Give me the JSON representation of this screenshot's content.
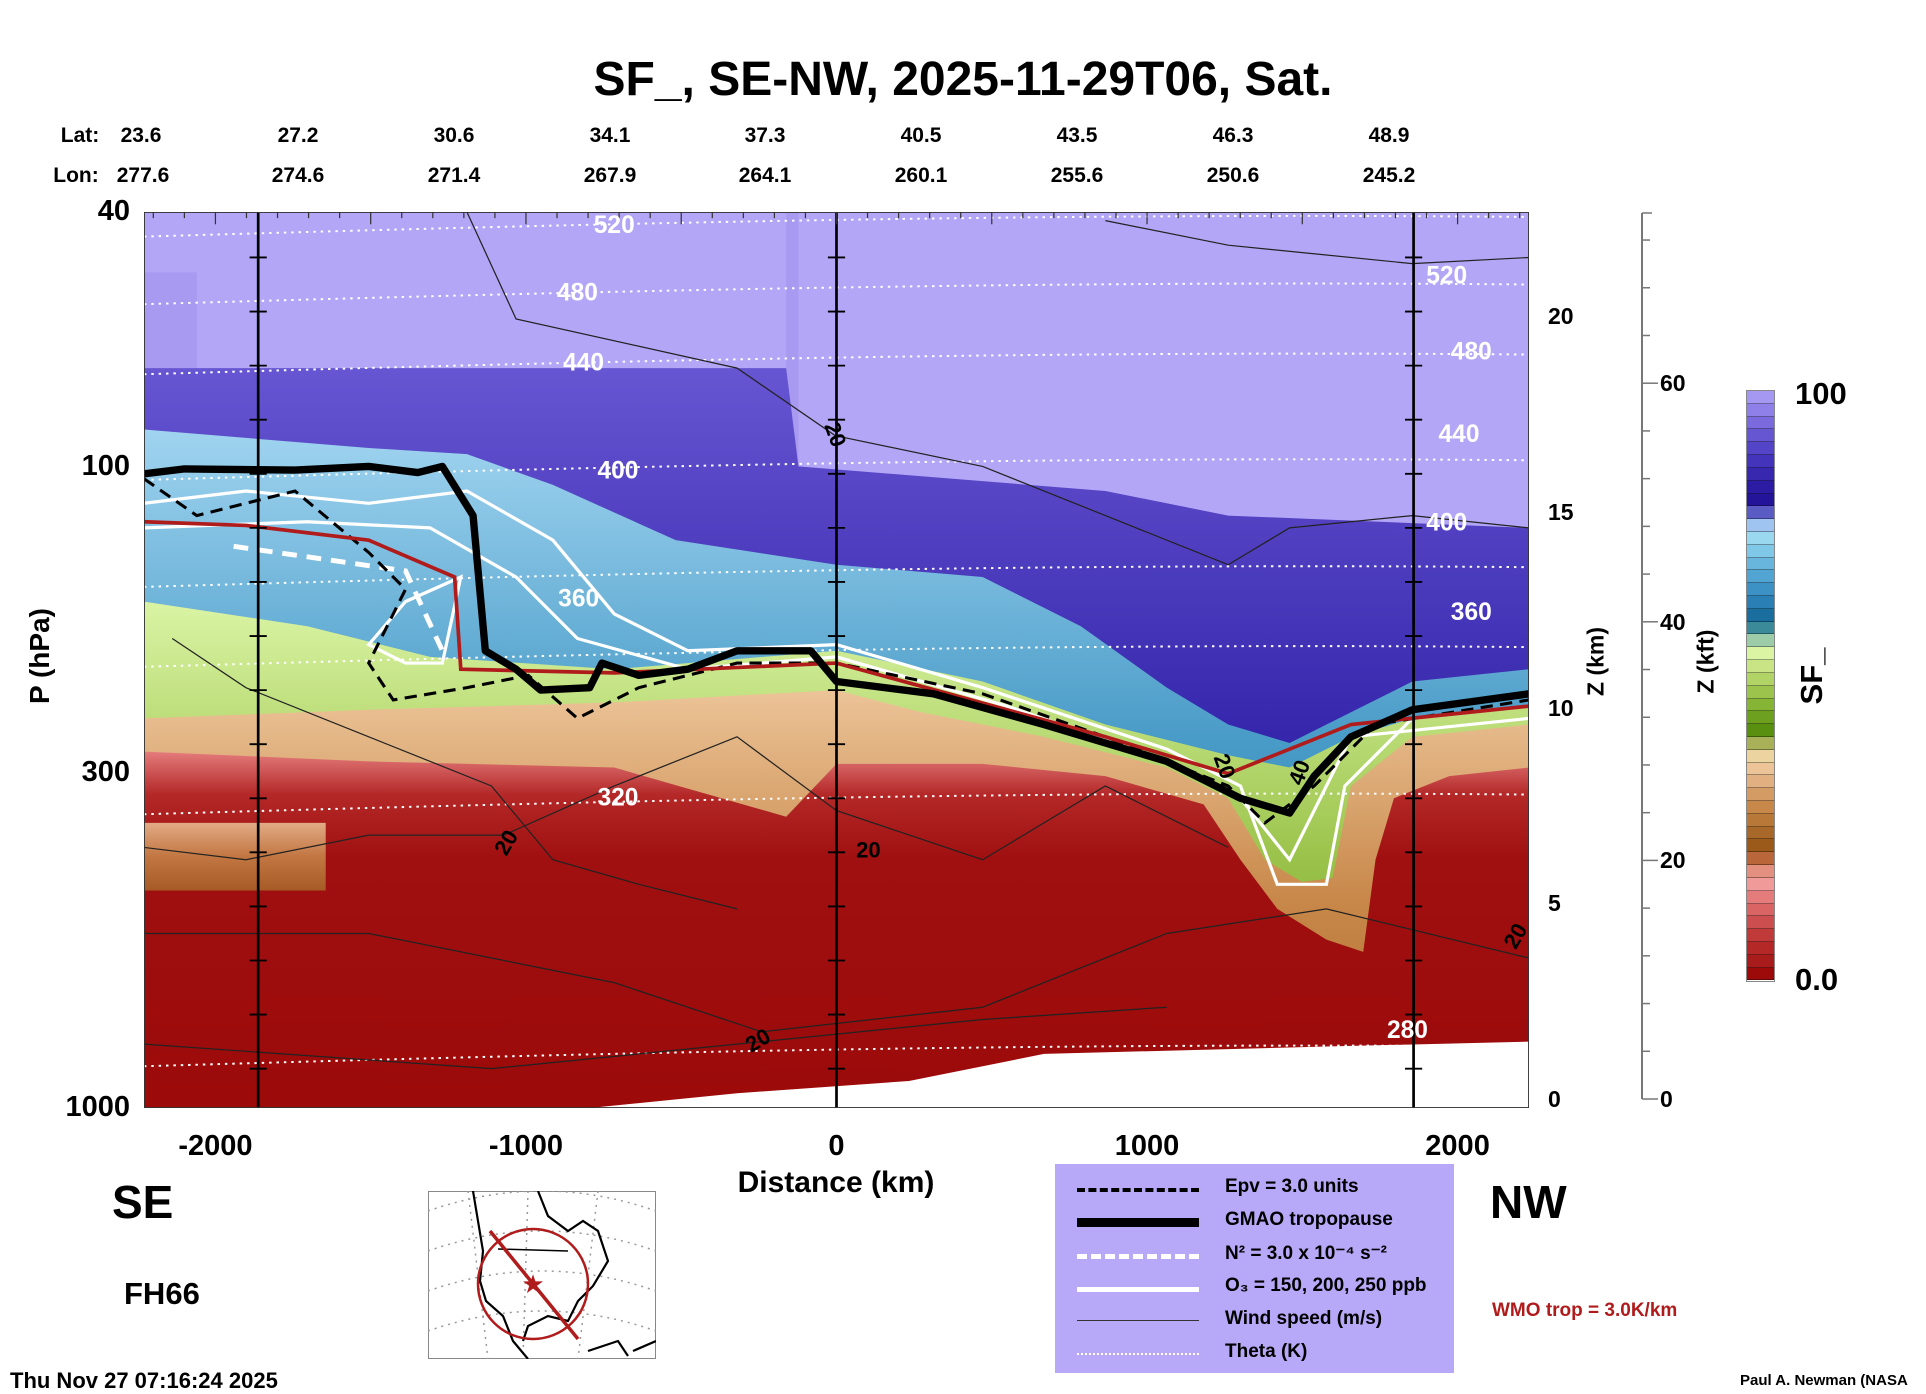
{
  "chart_data": {
    "type": "heatmap",
    "title": "SF_, SE-NW, 2025-11-29T06, Sat.",
    "xlabel": "Distance (km)",
    "ylabel": "P (hPa)",
    "y2label": "Z (km)",
    "y3label": "Z (kft)",
    "xlim": [
      -2230,
      2230
    ],
    "ylim": [
      1000,
      40
    ],
    "yscale": "log",
    "x_ticks": [
      -2000,
      -1000,
      0,
      1000,
      2000
    ],
    "x_tick_labels": [
      "-2000",
      "-1000",
      "0",
      "1000",
      "2000"
    ],
    "y_ticks": [
      40,
      100,
      300,
      1000
    ],
    "y_tick_labels": [
      "40",
      "100",
      "300",
      "1000"
    ],
    "zkm_ticks": [
      0,
      5,
      10,
      15,
      20
    ],
    "zkm_tick_labels": [
      "0",
      "5",
      "10",
      "15",
      "20"
    ],
    "zkft_ticks": [
      0,
      20,
      40,
      60
    ],
    "zkft_tick_labels": [
      "0",
      "20",
      "40",
      "60"
    ],
    "lat_label": "Lat:",
    "lon_label": "Lon:",
    "lat": [
      "23.6",
      "27.2",
      "30.6",
      "34.1",
      "37.3",
      "40.5",
      "43.5",
      "46.3",
      "48.9"
    ],
    "lon": [
      "277.6",
      "274.6",
      "271.4",
      "267.9",
      "264.1",
      "260.1",
      "255.6",
      "250.6",
      "245.2"
    ],
    "colorbar": {
      "label": "SF_",
      "min_label": "0.0",
      "max_label": "100",
      "range": [
        0,
        100
      ],
      "colors": [
        "#9c0a0a",
        "#a81c1c",
        "#b42828",
        "#c03a3a",
        "#cc4e4e",
        "#d86464",
        "#e47c7c",
        "#f09a9a",
        "#e49080",
        "#b8663a",
        "#9c5a1a",
        "#a8682a",
        "#b87838",
        "#c8884a",
        "#d49c64",
        "#e0b080",
        "#ecc498",
        "#ecd4a0",
        "#a8b058",
        "#5a9010",
        "#6ea020",
        "#86b434",
        "#9cc44c",
        "#b2d466",
        "#c8e484",
        "#daf4a4",
        "#9ccca8",
        "#3a8a9a",
        "#1a6e9e",
        "#2a80b4",
        "#3c92c4",
        "#52a4d2",
        "#68b6de",
        "#80c8e8",
        "#9ad8f0",
        "#a0c4f0",
        "#5a5cc4",
        "#24149a",
        "#2c1ca4",
        "#3828b0",
        "#4434bc",
        "#5444c8",
        "#6656d2",
        "#7a6ade",
        "#8e80e8",
        "#a498f2"
      ]
    },
    "theta_labels_left": [
      "520",
      "480",
      "440",
      "400",
      "360",
      "320"
    ],
    "theta_labels_right": [
      "520",
      "480",
      "440",
      "400",
      "360",
      "280"
    ],
    "wind_labels": [
      "20",
      "20",
      "20",
      "20",
      "20",
      "20",
      "40"
    ],
    "directions": {
      "left": "SE",
      "right": "NW"
    },
    "forecast_hour": "FH66",
    "timestamp": "Thu Nov 27 07:16:24 2025",
    "legend": [
      {
        "style": "black-dashed",
        "label": "Epv = 3.0 units"
      },
      {
        "style": "black-thick",
        "label": "GMAO tropopause"
      },
      {
        "style": "white-dashed",
        "label": "N² = 3.0 x 10⁻⁴ s⁻²"
      },
      {
        "style": "white-solid",
        "label": "O₃ = 150, 200, 250 ppb"
      },
      {
        "style": "thin-black",
        "label": "Wind speed (m/s)"
      },
      {
        "style": "white-dotted",
        "label": "Theta (K)"
      }
    ],
    "wmo_note": "WMO trop = 3.0K/km",
    "credit": "Paul A. Newman (NASA",
    "colors": {
      "wmo": "#b01c1c",
      "legend_bg": "#b8a8f8",
      "map_track": "#b01c1c"
    }
  }
}
